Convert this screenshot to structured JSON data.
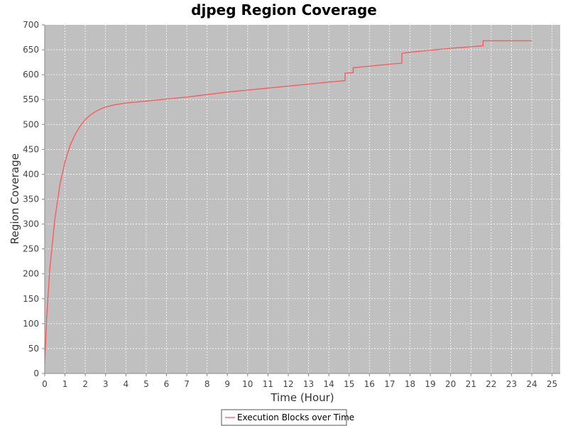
{
  "chart_data": {
    "type": "line",
    "title": "djpeg Region Coverage",
    "xlabel": "Time (Hour)",
    "ylabel": "Region Coverage",
    "xlim": [
      0,
      25.4
    ],
    "ylim": [
      0,
      700
    ],
    "x_ticks": [
      0,
      1,
      2,
      3,
      4,
      5,
      6,
      7,
      8,
      9,
      10,
      11,
      12,
      13,
      14,
      15,
      16,
      17,
      18,
      19,
      20,
      21,
      22,
      23,
      24,
      25
    ],
    "y_ticks": [
      0,
      50,
      100,
      150,
      200,
      250,
      300,
      350,
      400,
      450,
      500,
      550,
      600,
      650,
      700
    ],
    "grid": true,
    "legend_position": "bottom-center",
    "colors": {
      "plot_background": "#c0c0c0",
      "grid": "#ffffff",
      "series": "#ff5555"
    },
    "series": [
      {
        "name": "Execution Blocks over Time",
        "points": [
          [
            0,
            20
          ],
          [
            0.1,
            115
          ],
          [
            0.25,
            210
          ],
          [
            0.5,
            310
          ],
          [
            0.75,
            380
          ],
          [
            1.0,
            425
          ],
          [
            1.25,
            458
          ],
          [
            1.5,
            480
          ],
          [
            1.75,
            497
          ],
          [
            2.0,
            510
          ],
          [
            2.25,
            519
          ],
          [
            2.5,
            526
          ],
          [
            2.75,
            531
          ],
          [
            3.0,
            535
          ],
          [
            3.5,
            540
          ],
          [
            4.0,
            543
          ],
          [
            4.5,
            545
          ],
          [
            5.0,
            547
          ],
          [
            6.0,
            551
          ],
          [
            7.0,
            555
          ],
          [
            8.0,
            560
          ],
          [
            9.0,
            565
          ],
          [
            10.0,
            569
          ],
          [
            11.0,
            573
          ],
          [
            12.0,
            577
          ],
          [
            13.0,
            581
          ],
          [
            14.0,
            585
          ],
          [
            14.8,
            588
          ],
          [
            14.8,
            603
          ],
          [
            15.2,
            604
          ],
          [
            15.2,
            614
          ],
          [
            16.0,
            617
          ],
          [
            17.0,
            621
          ],
          [
            17.6,
            623
          ],
          [
            17.6,
            643
          ],
          [
            18.0,
            645
          ],
          [
            19.0,
            649
          ],
          [
            20.0,
            653
          ],
          [
            21.0,
            656
          ],
          [
            21.6,
            658
          ],
          [
            21.6,
            668
          ],
          [
            24.0,
            668
          ]
        ]
      }
    ]
  }
}
